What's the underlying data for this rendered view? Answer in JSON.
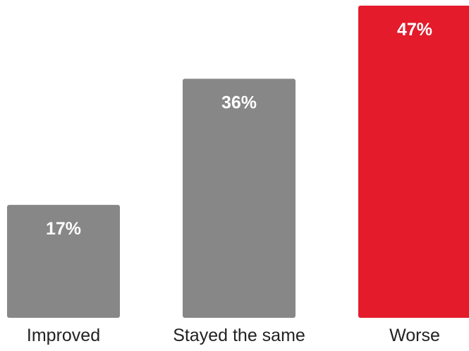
{
  "chart_data": {
    "type": "bar",
    "categories": [
      "Improved",
      "Stayed the same",
      "Worse"
    ],
    "values": [
      17,
      36,
      47
    ],
    "value_labels": [
      "17%",
      "36%",
      "47%"
    ],
    "bar_colors": [
      "#878787",
      "#878787",
      "#e31b2b"
    ],
    "title": "",
    "xlabel": "",
    "ylabel": "",
    "ylim": [
      0,
      47
    ],
    "grid": false,
    "legend": "none"
  }
}
